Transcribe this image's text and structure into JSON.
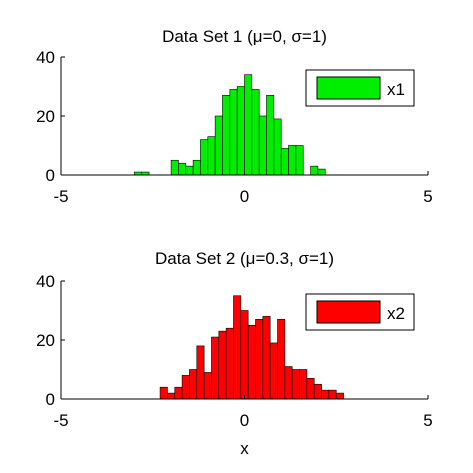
{
  "chart_data": [
    {
      "type": "bar",
      "title": "Data Set 1 (μ=0, σ=1)",
      "xlabel": "",
      "ylabel": "",
      "xlim": [
        -5,
        5
      ],
      "ylim": [
        0,
        40
      ],
      "xticks": [
        "-5",
        "0",
        "5"
      ],
      "yticks": [
        "0",
        "20",
        "40"
      ],
      "grid": false,
      "legend": {
        "entries": [
          "x1"
        ],
        "placement": "top-right"
      },
      "series": [
        {
          "name": "x1",
          "color": "#00ee00",
          "bins_start": -3.0,
          "bin_width": 0.2,
          "values": [
            1,
            1,
            0,
            0,
            0,
            5,
            4,
            3,
            5,
            12,
            13,
            20,
            27,
            29,
            30,
            34,
            29,
            20,
            27,
            19,
            9,
            10,
            10,
            0,
            3,
            2
          ]
        }
      ]
    },
    {
      "type": "bar",
      "title": "Data Set 2 (μ=0.3, σ=1)",
      "xlabel": "x",
      "ylabel": "",
      "xlim": [
        -5,
        5
      ],
      "ylim": [
        0,
        40
      ],
      "xticks": [
        "-5",
        "0",
        "5"
      ],
      "yticks": [
        "0",
        "20",
        "40"
      ],
      "grid": false,
      "legend": {
        "entries": [
          "x2"
        ],
        "placement": "top-right"
      },
      "series": [
        {
          "name": "x2",
          "color": "#ff0000",
          "bins_start": -2.3,
          "bin_width": 0.2,
          "values": [
            4,
            2,
            4,
            8,
            10,
            18,
            9,
            21,
            23,
            24,
            35,
            30,
            25,
            27,
            28,
            19,
            27,
            11,
            10,
            10,
            7,
            5,
            3,
            3,
            2
          ]
        }
      ]
    }
  ]
}
